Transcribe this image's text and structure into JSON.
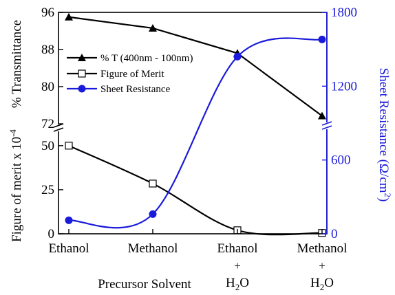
{
  "chart_data": {
    "type": "line",
    "categories": [
      "Ethanol",
      "Methanol",
      "Ethanol",
      "Methanol"
    ],
    "category_sublines": [
      [],
      [],
      [
        "+",
        "H",
        "2",
        "O"
      ],
      [
        "+",
        "H",
        "2",
        "O"
      ]
    ],
    "xlabel": "Precursor Solvent",
    "ylabel_top": "% Transmittance",
    "ylabel_bottom_main": "Figure of merit x 10",
    "ylabel_bottom_exp": "-4",
    "ylabel_right_main": "Sheet Resistance (Ω/cm",
    "ylabel_right_exp": "2",
    "ylabel_right_close": ")",
    "y_top": {
      "range": [
        72,
        96
      ],
      "ticks": [
        72,
        80,
        88,
        96
      ]
    },
    "y_bottom": {
      "range": [
        0,
        55
      ],
      "ticks": [
        0,
        25,
        50
      ]
    },
    "y_right": {
      "range": [
        0,
        1800
      ],
      "ticks": [
        0,
        600,
        1200,
        1800
      ]
    },
    "series": [
      {
        "name": "% T (400nm - 100nm)",
        "axis": "top",
        "marker": "triangle",
        "color": "#000000",
        "values": [
          95.0,
          92.6,
          87.2,
          73.7
        ]
      },
      {
        "name": "Figure of Merit",
        "axis": "bottom",
        "marker": "square-open",
        "color": "#000000",
        "values": [
          50.0,
          28.5,
          2.0,
          0.5
        ]
      },
      {
        "name": "Sheet Resistance",
        "axis": "right",
        "marker": "circle",
        "color": "#1a1adb",
        "values": [
          110,
          160,
          1440,
          1580
        ]
      }
    ],
    "legend": {
      "position": "top-left"
    }
  }
}
